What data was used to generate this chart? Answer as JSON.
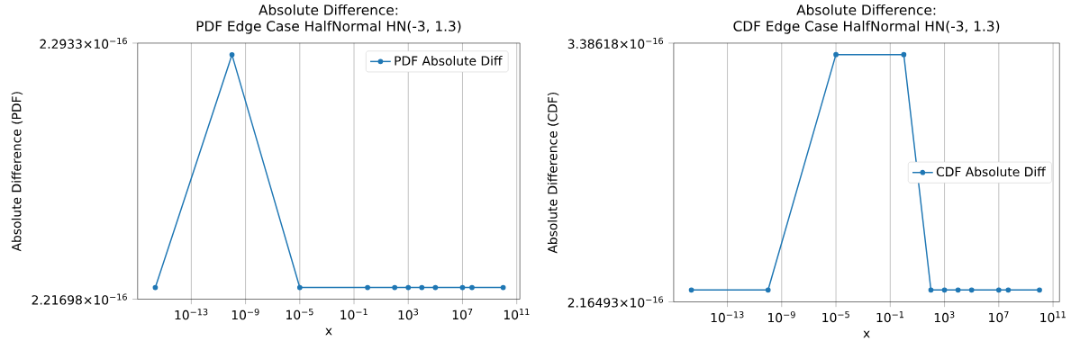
{
  "chart_data": [
    {
      "type": "line",
      "title": "Absolute Difference:",
      "subtitle": "PDF Edge Case HalfNormal HN(-3, 1.3)",
      "xlabel": "x",
      "ylabel": "Absolute Difference (PDF)",
      "x": [
        2.22e-16,
        1e-10,
        1e-05,
        1,
        100,
        1000,
        10000,
        100000,
        10000000,
        50000000,
        10000000000
      ],
      "series": [
        {
          "name": "PDF Absolute Diff",
          "color": "#1f77b4",
          "values": [
            2.2204e-16,
            2.2898e-16,
            2.2204e-16,
            2.2204e-16,
            2.2204e-16,
            2.2204e-16,
            2.2204e-16,
            2.2204e-16,
            2.2204e-16,
            2.2204e-16,
            2.2204e-16
          ]
        }
      ],
      "xlim": [
        1.1e-17,
        170000000000.0
      ],
      "ylim": [
        2.21698e-16,
        2.2933e-16
      ],
      "xticks": [
        {
          "value": 1e-13,
          "label": "10$^{−13}$"
        },
        {
          "value": 1e-09,
          "label": "10$^{−9}$"
        },
        {
          "value": 1e-05,
          "label": "10$^{−5}$"
        },
        {
          "value": 0.1,
          "label": "10$^{−1}$"
        },
        {
          "value": 1000,
          "label": "10$^{3}$"
        },
        {
          "value": 10000000.0,
          "label": "10$^{7}$"
        },
        {
          "value": 100000000000.0,
          "label": "10$^{11}$"
        }
      ],
      "yticks": [
        {
          "value": 2.21698e-16,
          "label": "2.21698×10$^{−16}$"
        },
        {
          "value": 2.2933e-16,
          "label": "2.2933×10$^{−16}$"
        }
      ],
      "log": "xy",
      "grid": "x",
      "legend": "top right",
      "marker": "circle"
    },
    {
      "type": "line",
      "title": "Absolute Difference:",
      "subtitle": "CDF Edge Case HalfNormal HN(-3, 1.3)",
      "xlabel": "x",
      "ylabel": "Absolute Difference (CDF)",
      "x": [
        2.22e-16,
        1e-10,
        1e-05,
        1,
        100,
        1000,
        10000,
        100000,
        10000000,
        50000000,
        10000000000
      ],
      "series": [
        {
          "name": "CDF Absolute Diff",
          "color": "#1f77b4",
          "values": [
            2.21e-16,
            2.21e-16,
            3.32e-16,
            3.32e-16,
            2.21e-16,
            2.21e-16,
            2.21e-16,
            2.21e-16,
            2.21e-16,
            2.21e-16,
            2.21e-16
          ]
        }
      ],
      "xlim": [
        1.1e-17,
        300000000000.0
      ],
      "ylim": [
        2.16493e-16,
        3.38618e-16
      ],
      "xticks": [
        {
          "value": 1e-13,
          "label": "10$^{−13}$"
        },
        {
          "value": 1e-09,
          "label": "10$^{−9}$"
        },
        {
          "value": 1e-05,
          "label": "10$^{−5}$"
        },
        {
          "value": 0.1,
          "label": "10$^{−1}$"
        },
        {
          "value": 1000,
          "label": "10$^{3}$"
        },
        {
          "value": 10000000.0,
          "label": "10$^{7}$"
        },
        {
          "value": 100000000000.0,
          "label": "10$^{11}$"
        }
      ],
      "yticks": [
        {
          "value": 2.16493e-16,
          "label": "2.16493×10$^{−16}$"
        },
        {
          "value": 3.38618e-16,
          "label": "3.38618×10$^{−16}$"
        }
      ],
      "log": "xy",
      "grid": "x",
      "legend": "right",
      "marker": "circle"
    }
  ]
}
